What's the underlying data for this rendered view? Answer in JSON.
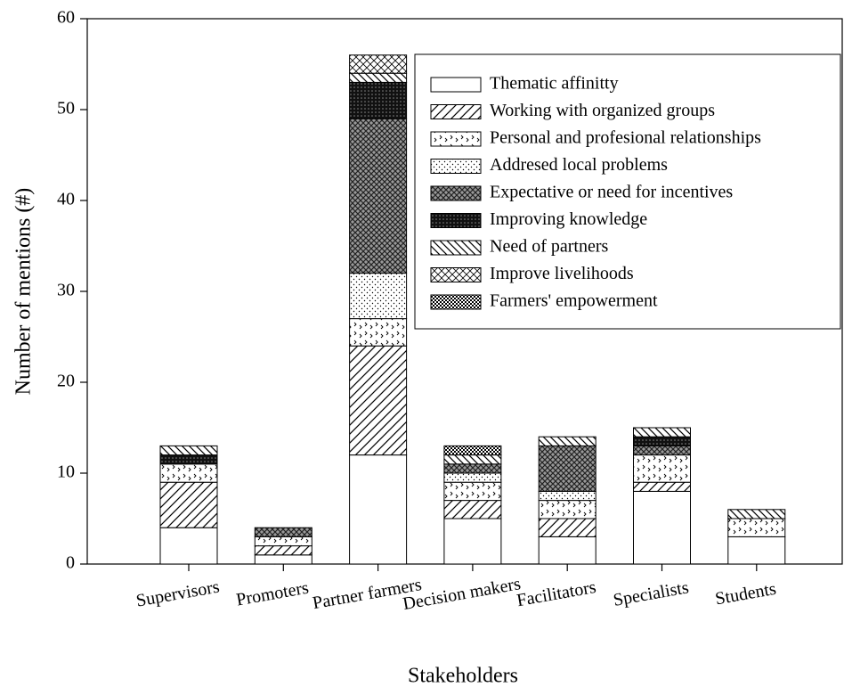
{
  "chart_data": {
    "type": "stacked_bar",
    "xlabel": "Stakeholders",
    "ylabel": "Number of mentions (#)",
    "categories": [
      "Supervisors",
      "Promoters",
      "Partner farmers",
      "Decision makers",
      "Facilitators",
      "Specialists",
      "Students"
    ],
    "series": [
      {
        "name": "Thematic affinitty",
        "pattern": "blank",
        "values": [
          4,
          1,
          12,
          5,
          3,
          8,
          3
        ]
      },
      {
        "name": "Working with organized groups",
        "pattern": "diagonal",
        "values": [
          5,
          1,
          12,
          2,
          2,
          1,
          0
        ]
      },
      {
        "name": "Personal and profesional relationships",
        "pattern": "chevron",
        "values": [
          2,
          1,
          3,
          2,
          2,
          3,
          2
        ]
      },
      {
        "name": "Addresed local problems",
        "pattern": "dots",
        "values": [
          0,
          0,
          5,
          1,
          1,
          0,
          0
        ]
      },
      {
        "name": "Expectative or need for incentives",
        "pattern": "darkcross",
        "values": [
          0,
          1,
          17,
          1,
          5,
          1,
          0
        ]
      },
      {
        "name": "Improving knowledge",
        "pattern": "grid",
        "values": [
          1,
          0,
          4,
          0,
          0,
          1,
          0
        ]
      },
      {
        "name": "Need of partners",
        "pattern": "backslash",
        "values": [
          1,
          0,
          1,
          1,
          1,
          1,
          1
        ]
      },
      {
        "name": "Improve livelihoods",
        "pattern": "cross",
        "values": [
          0,
          0,
          2,
          0,
          0,
          0,
          0
        ]
      },
      {
        "name": "Farmers' empowerment",
        "pattern": "densedots",
        "values": [
          0,
          0,
          0,
          1,
          0,
          0,
          0
        ]
      }
    ],
    "ylim": [
      0,
      60
    ],
    "yticks": [
      0,
      10,
      20,
      30,
      40,
      50,
      60
    ],
    "legend": "upper right"
  }
}
